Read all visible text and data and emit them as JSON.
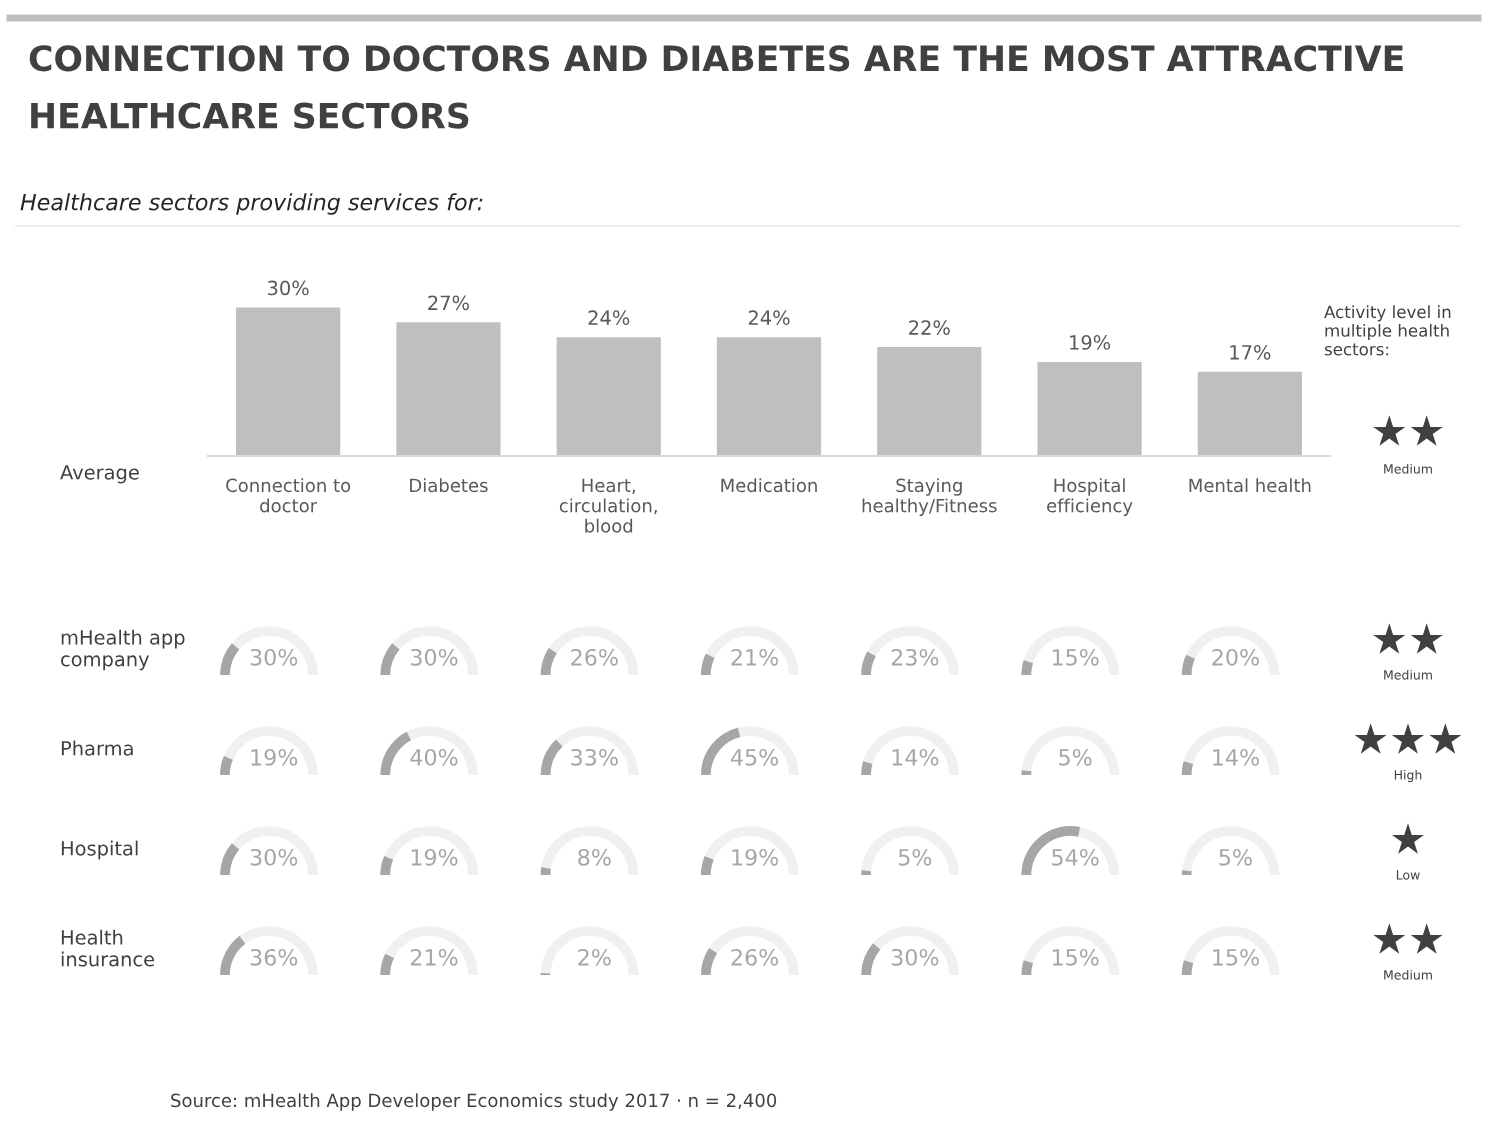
{
  "chart_data": [
    {
      "type": "bar",
      "title": "CONNECTION TO DOCTORS AND DIABETES ARE THE MOST ATTRACTIVE\nHEALTHCARE SECTORS",
      "subtitle": "Healthcare sectors providing services for:",
      "categories": [
        "Connection to\ndoctor",
        "Diabetes",
        "Heart,\ncirculation,\nblood",
        "Medication",
        "Staying\nhealthy/Fitness",
        "Hospital\nefficiency",
        "Mental health"
      ],
      "values": [
        30,
        27,
        24,
        24,
        22,
        19,
        17
      ],
      "value_labels": [
        "30%",
        "27%",
        "24%",
        "24%",
        "22%",
        "19%",
        "17%"
      ],
      "color": "#bfbfbf",
      "grid": false,
      "legend": false,
      "annotations": [
        "Average",
        "Activity level in\nmultiple health\nsectors:",
        "★★",
        "Medium"
      ]
    },
    {
      "type": "heatmap",
      "categories": [
        null,
        null,
        null,
        null,
        null,
        null,
        null
      ],
      "y_categories": [
        "mHealth app\ncompany",
        "Pharma",
        "Hospital",
        "Health\ninsurance"
      ],
      "y2_categories": [
        "★★",
        "★★★",
        "★",
        "★★"
      ],
      "cells": [
        [
          30,
          30,
          26,
          21,
          23,
          15,
          20
        ],
        [
          19,
          40,
          33,
          45,
          14,
          5,
          14
        ],
        [
          30,
          19,
          8,
          19,
          5,
          54,
          5
        ],
        [
          36,
          21,
          2,
          26,
          30,
          15,
          15
        ]
      ],
      "cell_labels": [
        [
          "30%",
          "30%",
          "26%",
          "21%",
          "23%",
          "15%",
          "20%"
        ],
        [
          "19%",
          "40%",
          "33%",
          "45%",
          "14%",
          "5%",
          "14%"
        ],
        [
          "30%",
          "19%",
          "8%",
          "19%",
          "5%",
          "54%",
          "5%"
        ],
        [
          "36%",
          "21%",
          "2%",
          "26%",
          "30%",
          "15%",
          "15%"
        ]
      ],
      "color": "#a6a6a6",
      "annotations": [
        "Medium",
        "High",
        "Low",
        "Medium",
        "Source: mHealth App Developer Economics study 2017 · n = 2,400"
      ]
    }
  ]
}
